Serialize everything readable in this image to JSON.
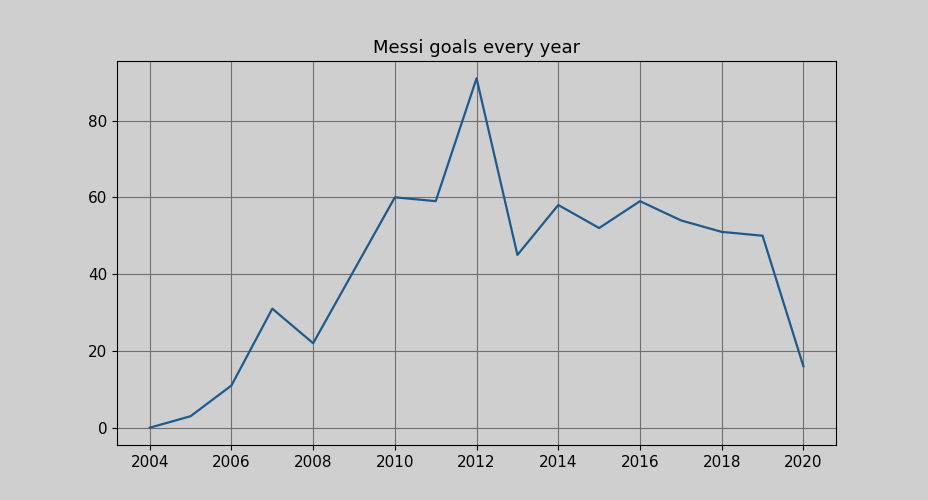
{
  "chart_data": {
    "type": "line",
    "title": "Messi goals every year",
    "x": [
      2004,
      2005,
      2006,
      2007,
      2008,
      2009,
      2010,
      2011,
      2012,
      2013,
      2014,
      2015,
      2016,
      2017,
      2018,
      2019,
      2020
    ],
    "values": [
      0,
      3,
      11,
      31,
      22,
      41,
      60,
      59,
      91,
      45,
      58,
      52,
      59,
      54,
      51,
      50,
      16
    ],
    "color": "#1f5a8c",
    "xlim": [
      2003.2,
      2020.8
    ],
    "ylim": [
      -4.5,
      95.5
    ],
    "xticks": [
      2004,
      2006,
      2008,
      2010,
      2012,
      2014,
      2016,
      2018,
      2020
    ],
    "yticks": [
      0,
      20,
      40,
      60,
      80
    ],
    "grid": true
  }
}
